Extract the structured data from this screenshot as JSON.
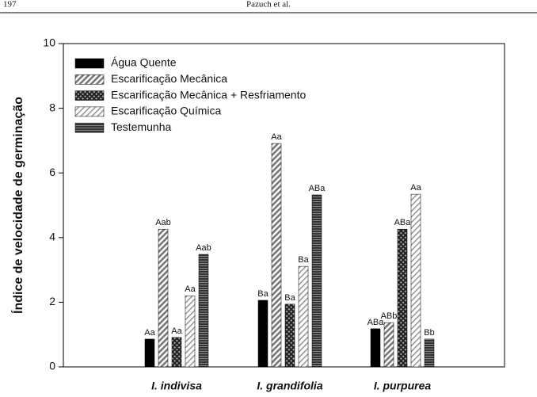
{
  "header": {
    "page": "197",
    "authors": "Pazuch et al."
  },
  "chart_data": {
    "type": "bar",
    "ylabel": "Índice de velocidade de germinação",
    "categories": [
      "I. indivisa",
      "I. grandifolia",
      "I. purpurea"
    ],
    "ylim": [
      0,
      10
    ],
    "yticks": [
      0,
      2,
      4,
      6,
      8,
      10
    ],
    "legend": "upper left",
    "series": [
      {
        "name": "Água Quente",
        "color": "#000000",
        "pattern": "solid",
        "values": [
          0.86,
          2.06,
          1.18
        ],
        "letters": [
          "Aa",
          "Ba",
          "ABa"
        ]
      },
      {
        "name": "Escarificação Mecânica",
        "color": "#777777",
        "pattern": "diagonal",
        "values": [
          4.26,
          6.91,
          1.37
        ],
        "letters": [
          "Aab",
          "Aa",
          "ABb"
        ]
      },
      {
        "name": "Escarificação Mecânica + Resfriamento",
        "color": "#222222",
        "pattern": "cross",
        "values": [
          0.91,
          1.94,
          4.26
        ],
        "letters": [
          "Aa",
          "Ba",
          "ABa"
        ]
      },
      {
        "name": "Escarificação Química",
        "color": "#999999",
        "pattern": "diagonal-light",
        "values": [
          2.2,
          3.11,
          5.34
        ],
        "letters": [
          "Aa",
          "Ba",
          "Aa"
        ]
      },
      {
        "name": "Testemunha",
        "color": "#333333",
        "pattern": "horizontal",
        "values": [
          3.48,
          5.32,
          0.86
        ],
        "letters": [
          "Aab",
          "ABa",
          "Bb"
        ]
      }
    ]
  }
}
